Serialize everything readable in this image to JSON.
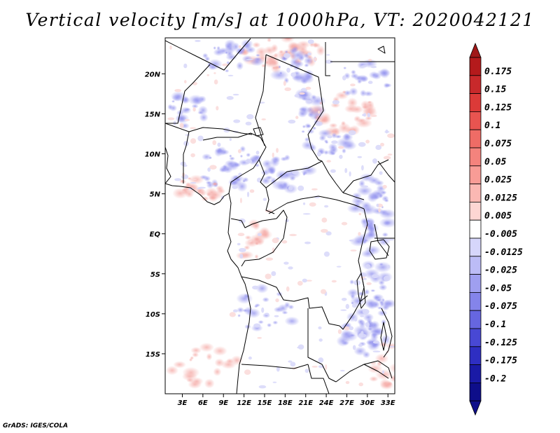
{
  "title": "Vertical velocity [m/s] at 1000hPa, VT: 2020042121",
  "footer": "GrADS: IGES/COLA",
  "map": {
    "lon_range": [
      0.5,
      34.0
    ],
    "lat_range": [
      -20.0,
      24.5
    ],
    "lat_ticks": [
      {
        "value": 20,
        "label": "20N"
      },
      {
        "value": 15,
        "label": "15N"
      },
      {
        "value": 10,
        "label": "10N"
      },
      {
        "value": 5,
        "label": "5N"
      },
      {
        "value": 0,
        "label": "EQ"
      },
      {
        "value": -5,
        "label": "5S"
      },
      {
        "value": -10,
        "label": "10S"
      },
      {
        "value": -15,
        "label": "15S"
      }
    ],
    "lon_ticks": [
      {
        "value": 3,
        "label": "3E"
      },
      {
        "value": 6,
        "label": "6E"
      },
      {
        "value": 9,
        "label": "9E"
      },
      {
        "value": 12,
        "label": "12E"
      },
      {
        "value": 15,
        "label": "15E"
      },
      {
        "value": 18,
        "label": "18E"
      },
      {
        "value": 21,
        "label": "21E"
      },
      {
        "value": 24,
        "label": "24E"
      },
      {
        "value": 27,
        "label": "27E"
      },
      {
        "value": 30,
        "label": "30E"
      },
      {
        "value": 33,
        "label": "33E"
      }
    ]
  },
  "colorbar": {
    "labels": [
      "0.175",
      "0.15",
      "0.125",
      "0.1",
      "0.075",
      "0.05",
      "0.025",
      "0.0125",
      "0.005",
      "-0.005",
      "-0.0125",
      "-0.025",
      "-0.05",
      "-0.075",
      "-0.1",
      "-0.125",
      "-0.175",
      "-0.2"
    ],
    "colors": [
      "#b41a1c",
      "#c8292b",
      "#dc3a38",
      "#e85450",
      "#ef6c66",
      "#f4837d",
      "#f89c96",
      "#fbb8b3",
      "#fdd6d3",
      "#ffffff",
      "#d6d6fb",
      "#bcbcf6",
      "#9f9ff0",
      "#8484ea",
      "#6666e0",
      "#4848d4",
      "#2e2ec2",
      "#1a1aa6",
      "#0e0e8a"
    ],
    "tip_colors": {
      "top": "#a01818",
      "bottom": "#10108a"
    }
  }
}
